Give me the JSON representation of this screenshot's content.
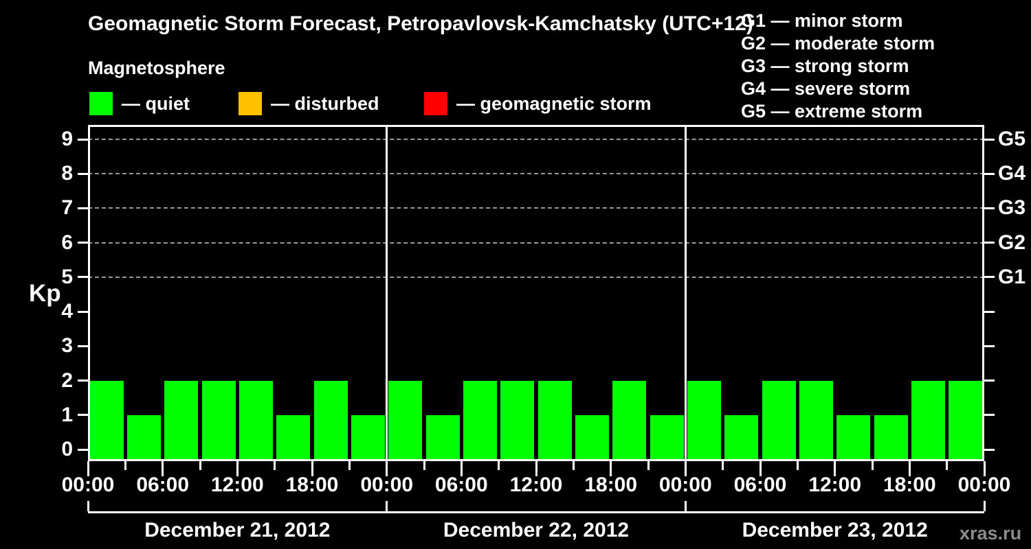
{
  "header": {
    "title": "Geomagnetic Storm Forecast, Petropavlovsk-Kamchatsky (UTC+12)",
    "subtitle": "Magnetosphere"
  },
  "legend": {
    "items": [
      {
        "name": "quiet",
        "label": "— quiet",
        "color": "#00ff00"
      },
      {
        "name": "disturbed",
        "label": "— disturbed",
        "color": "#ffc000"
      },
      {
        "name": "geomagnetic-storm",
        "label": "— geomagnetic storm",
        "color": "#ff0000"
      }
    ]
  },
  "storm_scale": {
    "lines": [
      "G1 — minor storm",
      "G2 — moderate storm",
      "G3 — strong storm",
      "G4 — severe storm",
      "G5 — extreme storm"
    ]
  },
  "watermark": "xras.ru",
  "colors": {
    "background": "#000000",
    "text": "#ffffff",
    "frame": "#ffffff",
    "gridline": "#999999",
    "quiet": "#00ff00",
    "disturbed": "#ffc000",
    "storm": "#ff0000",
    "watermark": "#8c8c8c"
  },
  "chart_data": {
    "type": "bar",
    "title": "Geomagnetic Storm Forecast, Petropavlovsk-Kamchatsky (UTC+12)",
    "ylabel": "Kp",
    "ylim": [
      0,
      9
    ],
    "yticks": [
      0,
      1,
      2,
      3,
      4,
      5,
      6,
      7,
      8,
      9
    ],
    "grid_dashed_levels": [
      5,
      6,
      7,
      8,
      9
    ],
    "right_axis": [
      {
        "value": 5,
        "label": "G1"
      },
      {
        "value": 6,
        "label": "G2"
      },
      {
        "value": 7,
        "label": "G3"
      },
      {
        "value": 8,
        "label": "G4"
      },
      {
        "value": 9,
        "label": "G5"
      }
    ],
    "interval_hours": 3,
    "x_tick_labels_6h": [
      "00:00",
      "06:00",
      "12:00",
      "18:00",
      "00:00",
      "06:00",
      "12:00",
      "18:00",
      "00:00",
      "06:00",
      "12:00",
      "18:00",
      "00:00"
    ],
    "days": [
      {
        "date": "December 21, 2012",
        "values": [
          2,
          1,
          2,
          2,
          2,
          1,
          2,
          1
        ]
      },
      {
        "date": "December 22, 2012",
        "values": [
          2,
          1,
          2,
          2,
          2,
          1,
          2,
          1
        ]
      },
      {
        "date": "December 23, 2012",
        "values": [
          2,
          1,
          2,
          2,
          1,
          1,
          2,
          2
        ]
      }
    ],
    "bar_status_all": "quiet",
    "legend_position": "top-right",
    "grid": "dashed horizontal at G1–G5 levels only"
  }
}
